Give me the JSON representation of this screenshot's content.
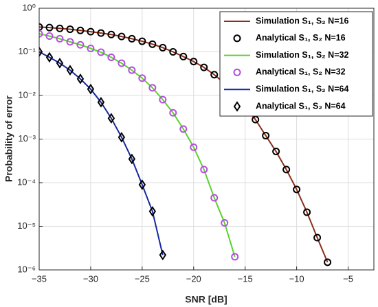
{
  "chart_data": {
    "type": "line",
    "xlabel": "SNR [dB]",
    "ylabel": "Probability of error",
    "xlim": [
      -35,
      -2.5
    ],
    "xticks": [
      {
        "value": -35,
        "label": "−35"
      },
      {
        "value": -30,
        "label": "−30"
      },
      {
        "value": -25,
        "label": "−25"
      },
      {
        "value": -20,
        "label": "−20"
      },
      {
        "value": -15,
        "label": "−15"
      },
      {
        "value": -10,
        "label": "−10"
      },
      {
        "value": -5,
        "label": "−5"
      }
    ],
    "ylim": [
      1e-06,
      1
    ],
    "log_y": true,
    "yticks": [
      {
        "value": 1,
        "label": "10⁰"
      },
      {
        "value": 0.1,
        "label": "10⁻¹"
      },
      {
        "value": 0.01,
        "label": "10⁻²"
      },
      {
        "value": 0.001,
        "label": "10⁻³"
      },
      {
        "value": 0.0001,
        "label": "10⁻⁴"
      },
      {
        "value": 1e-05,
        "label": "10⁻⁵"
      },
      {
        "value": 1e-06,
        "label": "10⁻⁶"
      }
    ],
    "grid": true,
    "legend": "upper right",
    "series": [
      {
        "name": "Simulation S₁, S₂ N=16",
        "color": "#8b2e1a",
        "marker": "none",
        "line": true,
        "x": [
          -35,
          -34,
          -33,
          -32,
          -31,
          -30,
          -29,
          -28,
          -27,
          -26,
          -25,
          -24,
          -23,
          -22,
          -21,
          -20,
          -19,
          -18,
          -17,
          -16,
          -15,
          -14,
          -13,
          -12,
          -11,
          -10,
          -9,
          -8,
          -7
        ],
        "values": [
          0.37,
          0.36,
          0.345,
          0.33,
          0.31,
          0.29,
          0.27,
          0.25,
          0.225,
          0.2,
          0.175,
          0.15,
          0.125,
          0.1,
          0.078,
          0.06,
          0.044,
          0.03,
          0.019,
          0.011,
          0.0057,
          0.0028,
          0.0012,
          0.00052,
          0.0002,
          7e-05,
          2.1e-05,
          5.5e-06,
          1.5e-06
        ]
      },
      {
        "name": "Analytical S₁, S₂ N=16",
        "color": "#000000",
        "marker": "circle",
        "line": false,
        "x": [
          -35,
          -34,
          -33,
          -32,
          -31,
          -30,
          -29,
          -28,
          -27,
          -26,
          -25,
          -24,
          -23,
          -22,
          -21,
          -20,
          -19,
          -18,
          -17,
          -16,
          -15,
          -14,
          -13,
          -12,
          -11,
          -10,
          -9,
          -8,
          -7
        ],
        "values": [
          0.37,
          0.36,
          0.345,
          0.33,
          0.31,
          0.29,
          0.27,
          0.25,
          0.225,
          0.2,
          0.175,
          0.15,
          0.125,
          0.1,
          0.078,
          0.06,
          0.044,
          0.03,
          0.019,
          0.011,
          0.0057,
          0.0028,
          0.0012,
          0.00052,
          0.0002,
          7e-05,
          2.1e-05,
          5.5e-06,
          1.5e-06
        ]
      },
      {
        "name": "Simulation S₁, S₂ N=32",
        "color": "#5bd12b",
        "marker": "none",
        "line": true,
        "x": [
          -35,
          -34,
          -33,
          -32,
          -31,
          -30,
          -29,
          -28,
          -27,
          -26,
          -25,
          -24,
          -23,
          -22,
          -21,
          -20,
          -19,
          -18,
          -17,
          -16
        ],
        "values": [
          0.26,
          0.23,
          0.2,
          0.17,
          0.145,
          0.12,
          0.098,
          0.075,
          0.055,
          0.038,
          0.025,
          0.015,
          0.008,
          0.004,
          0.0017,
          0.00065,
          0.0002,
          4.5e-05,
          1.2e-05,
          2e-06
        ]
      },
      {
        "name": "Analytical S₁, S₂ N=32",
        "color": "#b44fe0",
        "marker": "circle",
        "line": false,
        "x": [
          -35,
          -34,
          -33,
          -32,
          -31,
          -30,
          -29,
          -28,
          -27,
          -26,
          -25,
          -24,
          -23,
          -22,
          -21,
          -20,
          -19,
          -18,
          -17,
          -16
        ],
        "values": [
          0.26,
          0.23,
          0.2,
          0.17,
          0.145,
          0.12,
          0.098,
          0.075,
          0.055,
          0.038,
          0.025,
          0.015,
          0.008,
          0.004,
          0.0017,
          0.00065,
          0.0002,
          4.5e-05,
          1.2e-05,
          2e-06
        ]
      },
      {
        "name": "Simulation S₁, S₂ N=64",
        "color": "#1428a0",
        "marker": "none",
        "line": true,
        "x": [
          -35,
          -34,
          -33,
          -32,
          -31,
          -30,
          -29,
          -28,
          -27,
          -26,
          -25,
          -24,
          -23
        ],
        "values": [
          0.1,
          0.075,
          0.055,
          0.038,
          0.024,
          0.014,
          0.007,
          0.003,
          0.0011,
          0.00035,
          9e-05,
          2.2e-05,
          2.2e-06
        ]
      },
      {
        "name": "Analytical S₁, S₂ N=64",
        "color": "#000000",
        "marker": "diamond",
        "line": false,
        "x": [
          -35,
          -34,
          -33,
          -32,
          -31,
          -30,
          -29,
          -28,
          -27,
          -26,
          -25,
          -24,
          -23
        ],
        "values": [
          0.1,
          0.075,
          0.055,
          0.038,
          0.024,
          0.014,
          0.007,
          0.003,
          0.0011,
          0.00035,
          9e-05,
          2.2e-05,
          2.2e-06
        ]
      }
    ]
  }
}
